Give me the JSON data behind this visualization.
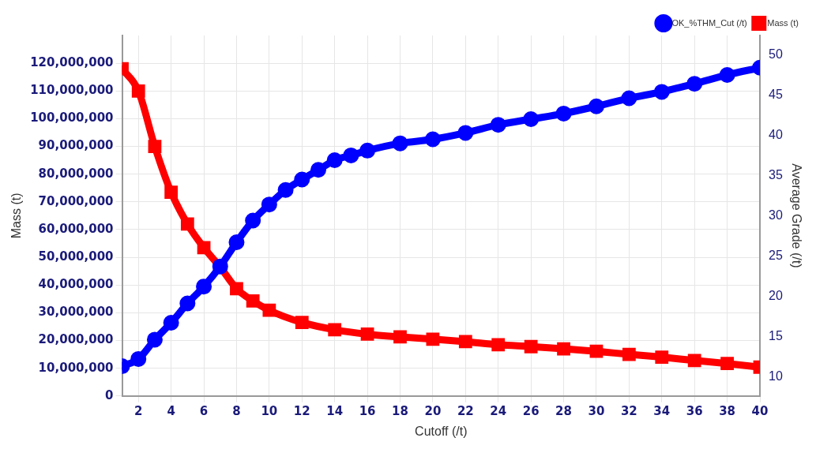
{
  "chart_data": {
    "type": "line",
    "xlabel": "Cutoff (/t)",
    "ylabel": "Mass (t)",
    "y2label": "Average Grade (/t)",
    "xlim": [
      1,
      40
    ],
    "xticks": [
      2,
      4,
      6,
      8,
      10,
      12,
      14,
      16,
      18,
      20,
      22,
      24,
      26,
      28,
      30,
      32,
      34,
      36,
      38,
      40
    ],
    "ylim": [
      0,
      130000000
    ],
    "yticks": [
      {
        "value": 0,
        "label": "0"
      },
      {
        "value": 10000000,
        "label": "10,000,000"
      },
      {
        "value": 20000000,
        "label": "20,000,000"
      },
      {
        "value": 30000000,
        "label": "30,000,000"
      },
      {
        "value": 40000000,
        "label": "40,000,000"
      },
      {
        "value": 50000000,
        "label": "50,000,000"
      },
      {
        "value": 60000000,
        "label": "60,000,000"
      },
      {
        "value": 70000000,
        "label": "70,000,000"
      },
      {
        "value": 80000000,
        "label": "80,000,000"
      },
      {
        "value": 90000000,
        "label": "90,000,000"
      },
      {
        "value": 100000000,
        "label": "100,000,000"
      },
      {
        "value": 110000000,
        "label": "110,000,000"
      },
      {
        "value": 120000000,
        "label": "120,000,000"
      }
    ],
    "y2lim": [
      7.6,
      52.4
    ],
    "y2ticks": [
      10,
      15,
      20,
      25,
      30,
      35,
      40,
      45,
      50
    ],
    "grid": true,
    "legend": "top right",
    "series": [
      {
        "name": "Mass (t)",
        "color": "#ff0000",
        "marker": "square",
        "x": [
          1,
          2,
          3,
          4,
          5,
          6,
          7,
          8,
          9,
          10,
          12,
          14,
          16,
          18,
          20,
          22,
          24,
          26,
          28,
          30,
          32,
          34,
          36,
          38,
          40
        ],
        "values": [
          118000000,
          110000000,
          90000000,
          73500000,
          62000000,
          53500000,
          46500000,
          38700000,
          34300000,
          30900000,
          26500000,
          23900000,
          22300000,
          21300000,
          20500000,
          19600000,
          18500000,
          17800000,
          17000000,
          16100000,
          15000000,
          14000000,
          12800000,
          11700000,
          10400000
        ]
      },
      {
        "name": "OK_%THM_Cut (/t)",
        "color": "#0000ff",
        "marker": "circle",
        "axis": "y2",
        "x": [
          1,
          2,
          3,
          4,
          5,
          6,
          7,
          8,
          9,
          10,
          11,
          12,
          13,
          14,
          15,
          16,
          18,
          20,
          22,
          24,
          26,
          28,
          30,
          32,
          34,
          36,
          38,
          40
        ],
        "values": [
          11.3,
          12.2,
          14.6,
          16.7,
          19.1,
          21.2,
          23.7,
          26.7,
          29.4,
          31.4,
          33.2,
          34.5,
          35.7,
          36.9,
          37.5,
          38.1,
          39,
          39.5,
          40.3,
          41.3,
          42,
          42.7,
          43.6,
          44.6,
          45.4,
          46.4,
          47.5,
          48.4
        ]
      }
    ]
  }
}
